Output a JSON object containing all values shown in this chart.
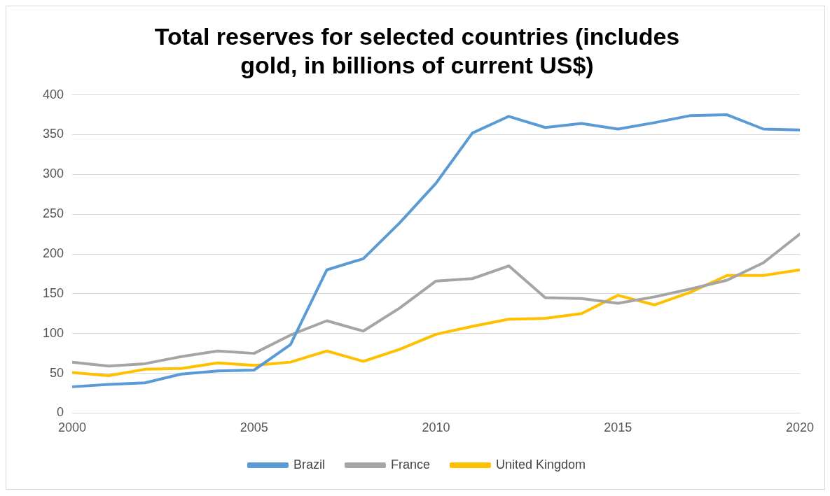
{
  "chart_data": {
    "type": "line",
    "title": "Total reserves for selected countries (includes gold, in billions of current US$)",
    "x": [
      2000,
      2001,
      2002,
      2003,
      2004,
      2005,
      2006,
      2007,
      2008,
      2009,
      2010,
      2011,
      2012,
      2013,
      2014,
      2015,
      2016,
      2017,
      2018,
      2019,
      2020
    ],
    "series": [
      {
        "name": "Brazil",
        "color": "#5b9bd5",
        "values": [
          33,
          36,
          38,
          49,
          53,
          54,
          86,
          180,
          194,
          239,
          289,
          352,
          373,
          359,
          364,
          357,
          365,
          374,
          375,
          357,
          356
        ]
      },
      {
        "name": "France",
        "color": "#a5a5a5",
        "values": [
          64,
          59,
          62,
          71,
          78,
          75,
          98,
          116,
          103,
          132,
          166,
          169,
          185,
          145,
          144,
          138,
          146,
          156,
          167,
          189,
          225
        ]
      },
      {
        "name": "United Kingdom",
        "color": "#ffc000",
        "values": [
          51,
          47,
          55,
          56,
          63,
          60,
          64,
          78,
          65,
          80,
          99,
          109,
          118,
          119,
          125,
          148,
          136,
          152,
          173,
          173,
          180
        ]
      }
    ],
    "xlim": [
      2000,
      2020
    ],
    "xticks": [
      2000,
      2005,
      2010,
      2015,
      2020
    ],
    "ylim": [
      0,
      400
    ],
    "yticks": [
      0,
      50,
      100,
      150,
      200,
      250,
      300,
      350,
      400
    ],
    "grid": "y",
    "legend": "bottom",
    "marker": "none",
    "line_style": "solid"
  }
}
